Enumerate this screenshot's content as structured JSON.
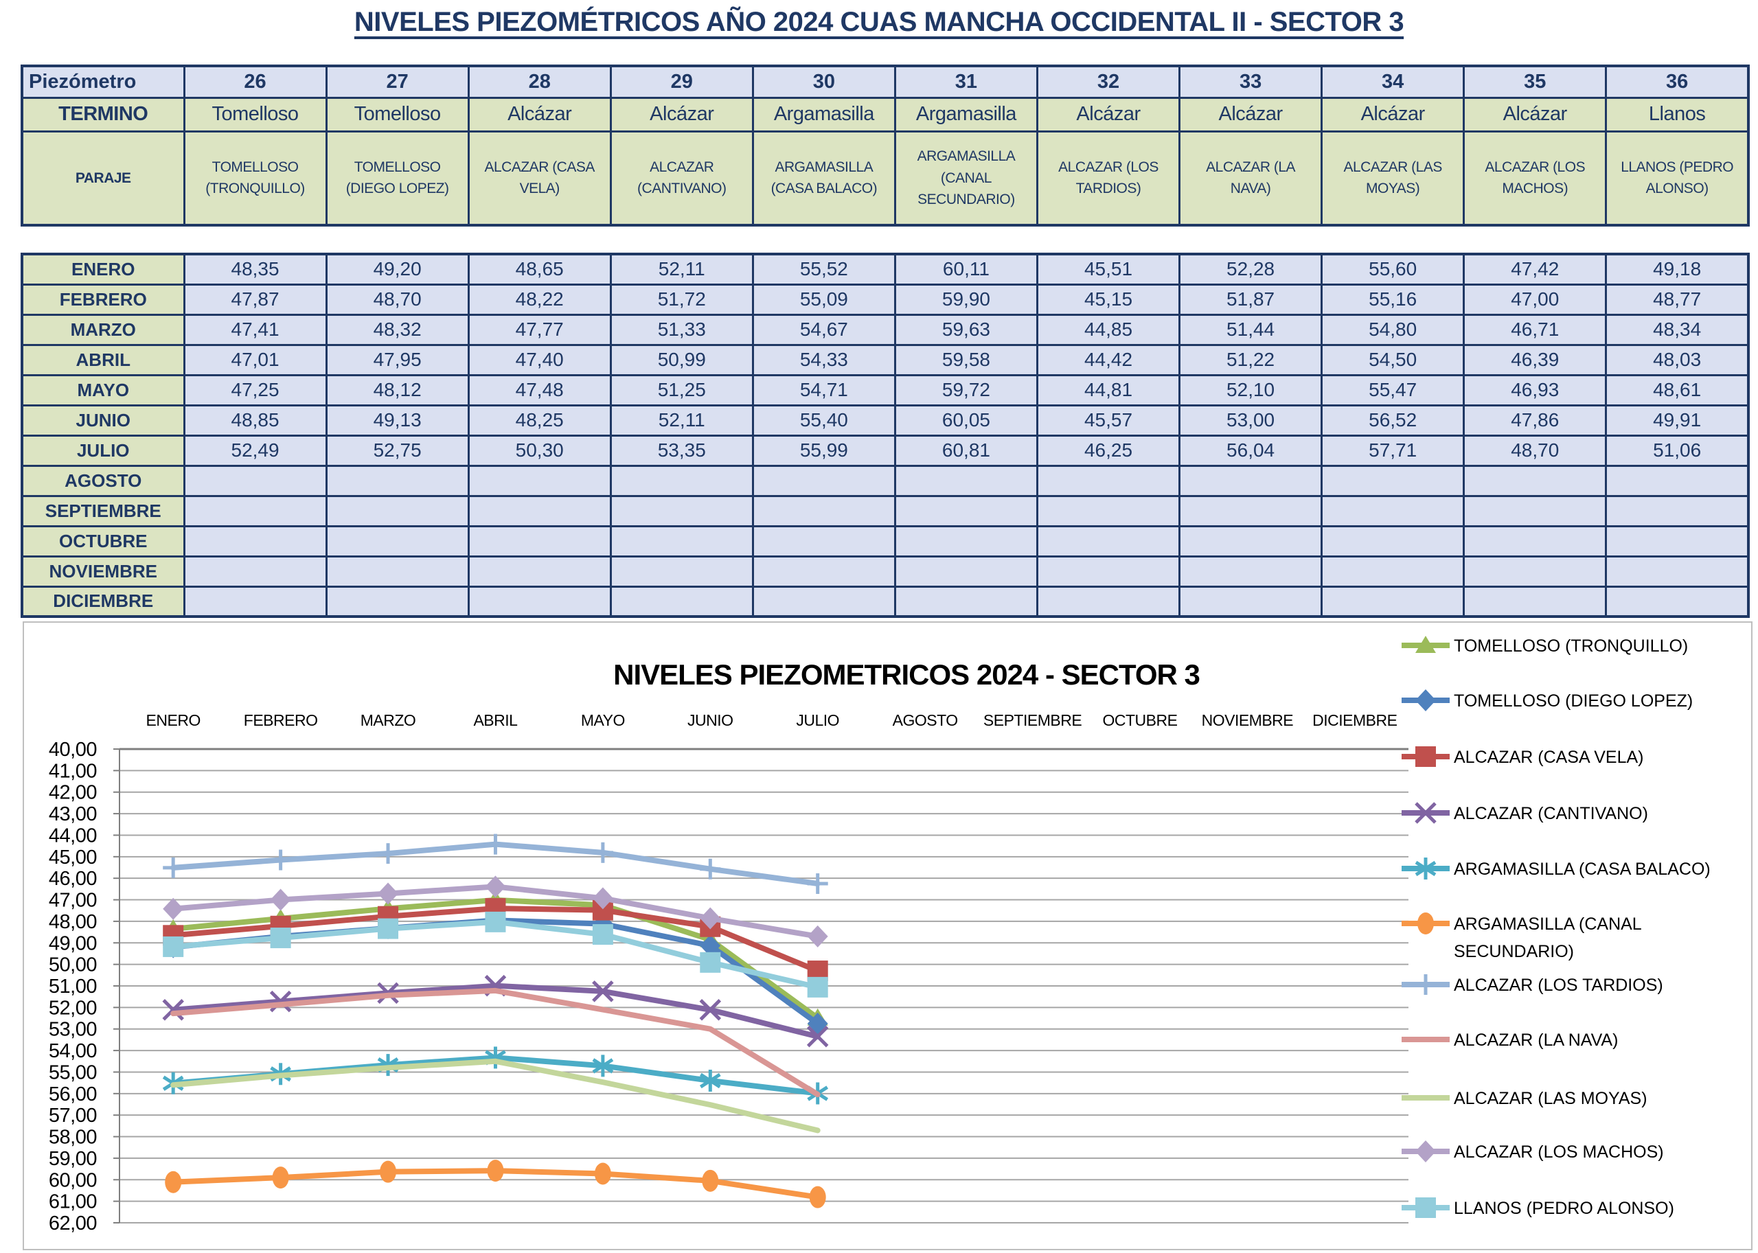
{
  "page_title": "NIVELES PIEZOMÉTRICOS AÑO 2024 CUAS MANCHA OCCIDENTAL II - SECTOR 3",
  "colors": {
    "table_border": "#1F3864",
    "table_text": "#1F3864",
    "lavender_fill": "#DAE0F1",
    "green_fill": "#DCE4C2",
    "chart_border": "#BFBFBF",
    "gridline": "#A6A6A6",
    "axis": "#7F7F7F"
  },
  "table": {
    "corner_label": "Piezómetro",
    "termino_label": "TERMINO",
    "paraje_label": "PARAJE",
    "piezometros": [
      "26",
      "27",
      "28",
      "29",
      "30",
      "31",
      "32",
      "33",
      "34",
      "35",
      "36"
    ],
    "terminos": [
      "Tomelloso",
      "Tomelloso",
      "Alcázar",
      "Alcázar",
      "Argamasilla",
      "Argamasilla",
      "Alcázar",
      "Alcázar",
      "Alcázar",
      "Alcázar",
      "Llanos"
    ],
    "parajes": [
      "TOMELLOSO (TRONQUILLO)",
      "TOMELLOSO (DIEGO LOPEZ)",
      "ALCAZAR (CASA VELA)",
      "ALCAZAR (CANTIVANO)",
      "ARGAMASILLA (CASA BALACO)",
      "ARGAMASILLA (CANAL SECUNDARIO)",
      "ALCAZAR (LOS TARDIOS)",
      "ALCAZAR (LA NAVA)",
      "ALCAZAR (LAS MOYAS)",
      "ALCAZAR (LOS MACHOS)",
      "LLANOS (PEDRO ALONSO)"
    ],
    "month_rows": [
      {
        "label": "ENERO",
        "values": [
          "48,35",
          "49,20",
          "48,65",
          "52,11",
          "55,52",
          "60,11",
          "45,51",
          "52,28",
          "55,60",
          "47,42",
          "49,18"
        ]
      },
      {
        "label": "FEBRERO",
        "values": [
          "47,87",
          "48,70",
          "48,22",
          "51,72",
          "55,09",
          "59,90",
          "45,15",
          "51,87",
          "55,16",
          "47,00",
          "48,77"
        ]
      },
      {
        "label": "MARZO",
        "values": [
          "47,41",
          "48,32",
          "47,77",
          "51,33",
          "54,67",
          "59,63",
          "44,85",
          "51,44",
          "54,80",
          "46,71",
          "48,34"
        ]
      },
      {
        "label": "ABRIL",
        "values": [
          "47,01",
          "47,95",
          "47,40",
          "50,99",
          "54,33",
          "59,58",
          "44,42",
          "51,22",
          "54,50",
          "46,39",
          "48,03"
        ]
      },
      {
        "label": "MAYO",
        "values": [
          "47,25",
          "48,12",
          "47,48",
          "51,25",
          "54,71",
          "59,72",
          "44,81",
          "52,10",
          "55,47",
          "46,93",
          "48,61"
        ]
      },
      {
        "label": "JUNIO",
        "values": [
          "48,85",
          "49,13",
          "48,25",
          "52,11",
          "55,40",
          "60,05",
          "45,57",
          "53,00",
          "56,52",
          "47,86",
          "49,91"
        ]
      },
      {
        "label": "JULIO",
        "values": [
          "52,49",
          "52,75",
          "50,30",
          "53,35",
          "55,99",
          "60,81",
          "46,25",
          "56,04",
          "57,71",
          "48,70",
          "51,06"
        ]
      },
      {
        "label": "AGOSTO",
        "values": []
      },
      {
        "label": "SEPTIEMBRE",
        "values": []
      },
      {
        "label": "OCTUBRE",
        "values": []
      },
      {
        "label": "NOVIEMBRE",
        "values": []
      },
      {
        "label": "DICIEMBRE",
        "values": []
      }
    ]
  },
  "chart_data": {
    "type": "line",
    "title": "NIVELES PIEZOMETRICOS 2024 - SECTOR 3",
    "x_categories": [
      "ENERO",
      "FEBRERO",
      "MARZO",
      "ABRIL",
      "MAYO",
      "JUNIO",
      "JULIO",
      "AGOSTO",
      "SEPTIEMBRE",
      "OCTUBRE",
      "NOVIEMBRE",
      "DICIEMBRE"
    ],
    "y_axis": {
      "min": 40,
      "max": 62,
      "step": 1,
      "inverted": true,
      "tick_format": "decimal_comma_2dp"
    },
    "grid": true,
    "legend_position": "right",
    "series": [
      {
        "name": "TOMELLOSO (TRONQUILLO)",
        "color": "#9BBB59",
        "marker": "triangle",
        "values": [
          48.35,
          47.87,
          47.41,
          47.01,
          47.25,
          48.85,
          52.49
        ]
      },
      {
        "name": "TOMELLOSO (DIEGO LOPEZ)",
        "color": "#4F81BD",
        "marker": "diamond",
        "values": [
          49.2,
          48.7,
          48.32,
          47.95,
          48.12,
          49.13,
          52.75
        ]
      },
      {
        "name": "ALCAZAR (CASA VELA)",
        "color": "#C0504D",
        "marker": "square",
        "values": [
          48.65,
          48.22,
          47.77,
          47.4,
          47.48,
          48.25,
          50.3
        ]
      },
      {
        "name": "ALCAZAR (CANTIVANO)",
        "color": "#8064A2",
        "marker": "x",
        "values": [
          52.11,
          51.72,
          51.33,
          50.99,
          51.25,
          52.11,
          53.35
        ]
      },
      {
        "name": "ARGAMASILLA (CASA BALACO)",
        "color": "#4BACC6",
        "marker": "asterisk",
        "values": [
          55.52,
          55.09,
          54.67,
          54.33,
          54.71,
          55.4,
          55.99
        ]
      },
      {
        "name": "ARGAMASILLA (CANAL SECUNDARIO)",
        "color": "#F79646",
        "marker": "circle",
        "values": [
          60.11,
          59.9,
          59.63,
          59.58,
          59.72,
          60.05,
          60.81
        ]
      },
      {
        "name": "ALCAZAR (LOS TARDIOS)",
        "color": "#95B3D7",
        "marker": "plus",
        "values": [
          45.51,
          45.15,
          44.85,
          44.42,
          44.81,
          45.57,
          46.25
        ]
      },
      {
        "name": "ALCAZAR (LA NAVA)",
        "color": "#D99694",
        "marker": "none",
        "values": [
          52.28,
          51.87,
          51.44,
          51.22,
          52.1,
          53.0,
          56.04
        ]
      },
      {
        "name": "ALCAZAR (LAS MOYAS)",
        "color": "#C3D69B",
        "marker": "none",
        "values": [
          55.6,
          55.16,
          54.8,
          54.5,
          55.47,
          56.52,
          57.71
        ]
      },
      {
        "name": "ALCAZAR (LOS MACHOS)",
        "color": "#B3A2C7",
        "marker": "diamond",
        "values": [
          47.42,
          47.0,
          46.71,
          46.39,
          46.93,
          47.86,
          48.7
        ]
      },
      {
        "name": "LLANOS (PEDRO ALONSO)",
        "color": "#92CDDC",
        "marker": "square",
        "values": [
          49.18,
          48.77,
          48.34,
          48.03,
          48.61,
          49.91,
          51.06
        ]
      }
    ]
  }
}
